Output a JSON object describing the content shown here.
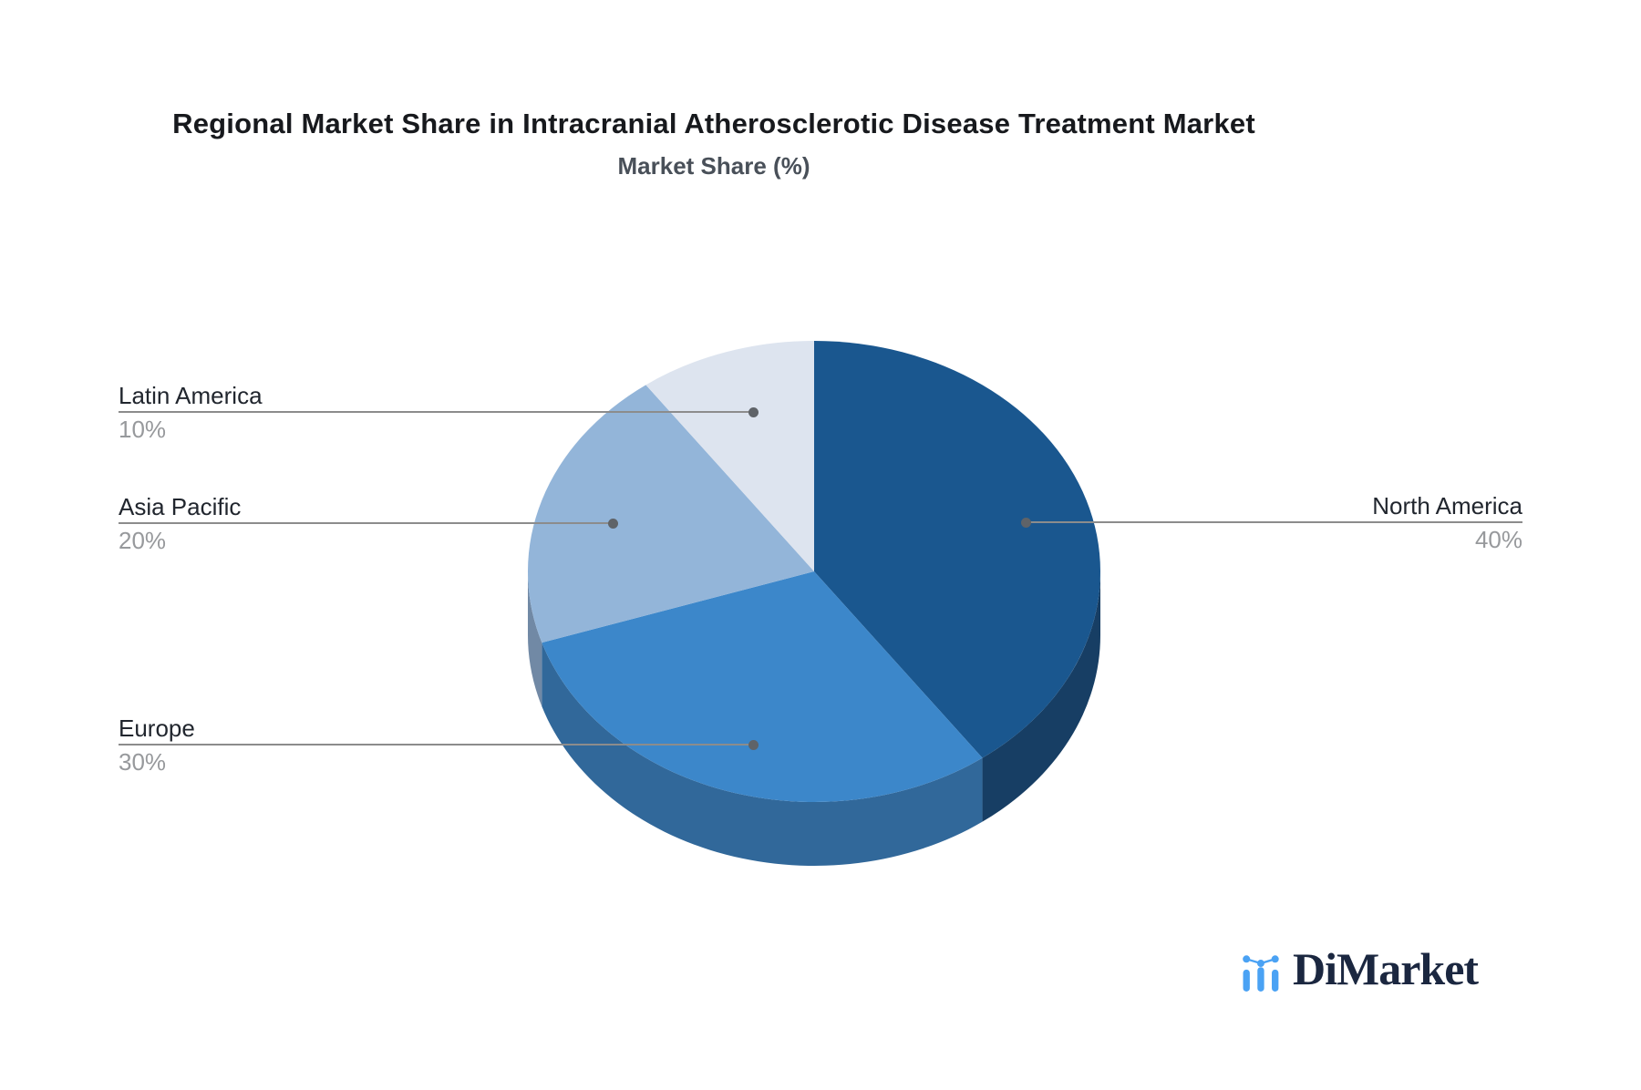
{
  "title": "Regional Market Share in Intracranial Atherosclerotic Disease Treatment Market",
  "subtitle": "Market Share (%)",
  "logo": {
    "text": "DiMarket",
    "icon": "bar-chart-with-trend-dots-icon",
    "icon_color": "#4aa2f4",
    "text_color": "#1b2740"
  },
  "chart_data": {
    "type": "pie",
    "style": "3d",
    "title": "Regional Market Share in Intracranial Atherosclerotic Disease Treatment Market",
    "subtitle": "Market Share (%)",
    "unit": "%",
    "start_angle_deg": 0,
    "direction": "clockwise",
    "legend": "none",
    "label_style": "callout-lines-with-dots",
    "categories": [
      "North America",
      "Europe",
      "Asia Pacific",
      "Latin America"
    ],
    "values": [
      40,
      30,
      20,
      10
    ],
    "slices": [
      {
        "name": "North America",
        "value": 40,
        "pct": "40%",
        "color": "#1a578f",
        "side_color": "#173e64"
      },
      {
        "name": "Europe",
        "value": 30,
        "pct": "30%",
        "color": "#3c87ca",
        "side_color": "#31689a"
      },
      {
        "name": "Asia Pacific",
        "value": 20,
        "pct": "20%",
        "color": "#93b5d9",
        "side_color": "#7189a5"
      },
      {
        "name": "Latin America",
        "value": 10,
        "pct": "10%",
        "color": "#dde4ef",
        "side_color": "#b9c4d6"
      }
    ]
  }
}
